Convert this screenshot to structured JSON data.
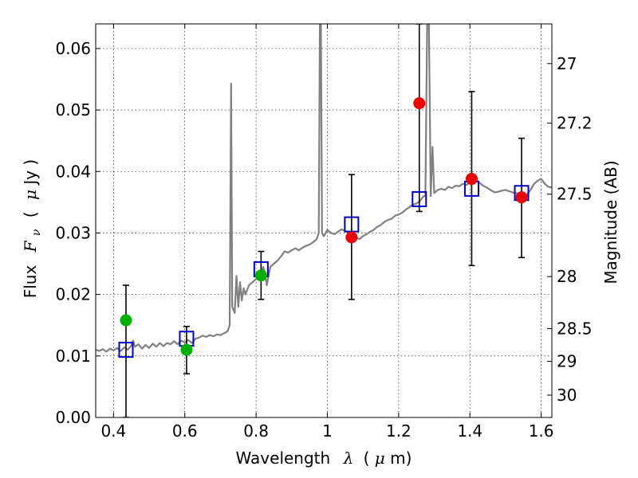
{
  "chart_data": {
    "type": "scatter",
    "xlabel_prefix": "Wavelength",
    "xlabel_symbol": "λ",
    "xlabel_unit_open": "(",
    "xlabel_unit_mu": "μ",
    "xlabel_unit_rest": "m)",
    "ylabel_prefix": "Flux",
    "ylabel_symbol": "F",
    "ylabel_subscript": "ν",
    "ylabel_unit_open": "(",
    "ylabel_unit_mu": "μ",
    "ylabel_unit_rest": "Jy )",
    "y2label": "Magnitude (AB)",
    "xlim": [
      0.35,
      1.63
    ],
    "ylim": [
      0.0,
      0.064
    ],
    "grid": true,
    "colors": {
      "spectrum": "#808080",
      "model_box": "#0000cc",
      "green": "#00b000",
      "red": "#ee0000",
      "error": "#000000"
    },
    "x_ticks": [
      {
        "value": 0.4,
        "label": "0.4"
      },
      {
        "value": 0.6,
        "label": "0.6"
      },
      {
        "value": 0.8,
        "label": "0.8"
      },
      {
        "value": 1.0,
        "label": "1"
      },
      {
        "value": 1.2,
        "label": "1.2"
      },
      {
        "value": 1.4,
        "label": "1.4"
      },
      {
        "value": 1.6,
        "label": "1.6"
      }
    ],
    "y_ticks": [
      {
        "value": 0.0,
        "label": "0.00"
      },
      {
        "value": 0.01,
        "label": "0.01"
      },
      {
        "value": 0.02,
        "label": "0.02"
      },
      {
        "value": 0.03,
        "label": "0.03"
      },
      {
        "value": 0.04,
        "label": "0.04"
      },
      {
        "value": 0.05,
        "label": "0.05"
      },
      {
        "value": 0.06,
        "label": "0.06"
      }
    ],
    "y2_ticks": [
      {
        "value": 27.0,
        "label": "27"
      },
      {
        "value": 27.2,
        "label": "27.2"
      },
      {
        "value": 27.5,
        "label": "27.5"
      },
      {
        "value": 28.0,
        "label": "28"
      },
      {
        "value": 28.5,
        "label": "28.5"
      },
      {
        "value": 29.0,
        "label": "29"
      },
      {
        "value": 30.0,
        "label": "30"
      }
    ],
    "model_photometry": [
      {
        "x": 0.435,
        "y": 0.011
      },
      {
        "x": 0.605,
        "y": 0.0128
      },
      {
        "x": 0.814,
        "y": 0.0241
      },
      {
        "x": 1.068,
        "y": 0.0314
      },
      {
        "x": 1.258,
        "y": 0.0355
      },
      {
        "x": 1.405,
        "y": 0.0372
      },
      {
        "x": 1.545,
        "y": 0.0365
      }
    ],
    "observed_green": [
      {
        "x": 0.435,
        "y": 0.0158,
        "err_low": 0.0,
        "err_high": 0.0215
      },
      {
        "x": 0.605,
        "y": 0.011,
        "err_low": 0.0071,
        "err_high": 0.0148
      },
      {
        "x": 0.814,
        "y": 0.0231,
        "err_low": 0.0192,
        "err_high": 0.027
      }
    ],
    "observed_red": [
      {
        "x": 1.068,
        "y": 0.0293,
        "err_low": 0.0192,
        "err_high": 0.0395
      },
      {
        "x": 1.258,
        "y": 0.0511,
        "err_low": 0.0335,
        "err_high": 0.064
      },
      {
        "x": 1.405,
        "y": 0.0388,
        "err_low": 0.0247,
        "err_high": 0.053
      },
      {
        "x": 1.545,
        "y": 0.0358,
        "err_low": 0.026,
        "err_high": 0.0454
      }
    ],
    "spectrum": [
      [
        0.35,
        0.011
      ],
      [
        0.36,
        0.0108
      ],
      [
        0.37,
        0.0111
      ],
      [
        0.38,
        0.0107
      ],
      [
        0.39,
        0.0112
      ],
      [
        0.4,
        0.0109
      ],
      [
        0.41,
        0.0113
      ],
      [
        0.42,
        0.0108
      ],
      [
        0.43,
        0.0114
      ],
      [
        0.44,
        0.011
      ],
      [
        0.45,
        0.0117
      ],
      [
        0.455,
        0.0125
      ],
      [
        0.46,
        0.0115
      ],
      [
        0.47,
        0.0119
      ],
      [
        0.48,
        0.0112
      ],
      [
        0.49,
        0.0118
      ],
      [
        0.5,
        0.0113
      ],
      [
        0.51,
        0.012
      ],
      [
        0.52,
        0.0115
      ],
      [
        0.53,
        0.0121
      ],
      [
        0.54,
        0.0116
      ],
      [
        0.55,
        0.0121
      ],
      [
        0.56,
        0.0119
      ],
      [
        0.57,
        0.0124
      ],
      [
        0.58,
        0.0119
      ],
      [
        0.59,
        0.0125
      ],
      [
        0.6,
        0.0122
      ],
      [
        0.61,
        0.0126
      ],
      [
        0.62,
        0.0121
      ],
      [
        0.63,
        0.0128
      ],
      [
        0.64,
        0.013
      ],
      [
        0.65,
        0.0133
      ],
      [
        0.66,
        0.0131
      ],
      [
        0.67,
        0.0134
      ],
      [
        0.68,
        0.0132
      ],
      [
        0.69,
        0.0135
      ],
      [
        0.7,
        0.0134
      ],
      [
        0.71,
        0.0137
      ],
      [
        0.72,
        0.014
      ],
      [
        0.726,
        0.015
      ],
      [
        0.73,
        0.0543
      ],
      [
        0.733,
        0.018
      ],
      [
        0.74,
        0.017
      ],
      [
        0.745,
        0.023
      ],
      [
        0.75,
        0.018
      ],
      [
        0.755,
        0.022
      ],
      [
        0.76,
        0.019
      ],
      [
        0.765,
        0.021
      ],
      [
        0.77,
        0.02
      ],
      [
        0.78,
        0.0215
      ],
      [
        0.79,
        0.022
      ],
      [
        0.8,
        0.0225
      ],
      [
        0.81,
        0.0228
      ],
      [
        0.82,
        0.0245
      ],
      [
        0.825,
        0.0235
      ],
      [
        0.83,
        0.0215
      ],
      [
        0.84,
        0.0245
      ],
      [
        0.85,
        0.025
      ],
      [
        0.86,
        0.0255
      ],
      [
        0.87,
        0.0262
      ],
      [
        0.88,
        0.027
      ],
      [
        0.89,
        0.0268
      ],
      [
        0.9,
        0.0272
      ],
      [
        0.91,
        0.0275
      ],
      [
        0.92,
        0.0272
      ],
      [
        0.93,
        0.0276
      ],
      [
        0.94,
        0.0279
      ],
      [
        0.95,
        0.0281
      ],
      [
        0.96,
        0.0285
      ],
      [
        0.97,
        0.029
      ],
      [
        0.976,
        0.03
      ],
      [
        0.979,
        0.064
      ],
      [
        0.982,
        0.064
      ],
      [
        0.985,
        0.03
      ],
      [
        0.99,
        0.0295
      ],
      [
        1.0,
        0.0305
      ],
      [
        1.01,
        0.03
      ],
      [
        1.02,
        0.0298
      ],
      [
        1.03,
        0.0302
      ],
      [
        1.04,
        0.0306
      ],
      [
        1.05,
        0.0303
      ],
      [
        1.06,
        0.03
      ],
      [
        1.07,
        0.0296
      ],
      [
        1.08,
        0.0293
      ],
      [
        1.09,
        0.029
      ],
      [
        1.1,
        0.0295
      ],
      [
        1.11,
        0.0298
      ],
      [
        1.12,
        0.0302
      ],
      [
        1.13,
        0.0305
      ],
      [
        1.14,
        0.031
      ],
      [
        1.15,
        0.0313
      ],
      [
        1.16,
        0.0318
      ],
      [
        1.17,
        0.0321
      ],
      [
        1.18,
        0.0323
      ],
      [
        1.19,
        0.0328
      ],
      [
        1.2,
        0.033
      ],
      [
        1.21,
        0.0333
      ],
      [
        1.22,
        0.0338
      ],
      [
        1.23,
        0.0342
      ],
      [
        1.24,
        0.0346
      ],
      [
        1.25,
        0.0348
      ],
      [
        1.26,
        0.0352
      ],
      [
        1.27,
        0.036
      ],
      [
        1.275,
        0.036
      ],
      [
        1.28,
        0.064
      ],
      [
        1.285,
        0.064
      ],
      [
        1.29,
        0.036
      ],
      [
        1.295,
        0.044
      ],
      [
        1.3,
        0.0365
      ],
      [
        1.31,
        0.037
      ],
      [
        1.32,
        0.0372
      ],
      [
        1.33,
        0.037
      ],
      [
        1.34,
        0.0375
      ],
      [
        1.35,
        0.0373
      ],
      [
        1.36,
        0.0377
      ],
      [
        1.37,
        0.0376
      ],
      [
        1.38,
        0.038
      ],
      [
        1.39,
        0.0378
      ],
      [
        1.4,
        0.0382
      ],
      [
        1.41,
        0.0381
      ],
      [
        1.42,
        0.0385
      ],
      [
        1.43,
        0.038
      ],
      [
        1.44,
        0.0376
      ],
      [
        1.45,
        0.0373
      ],
      [
        1.46,
        0.0369
      ],
      [
        1.47,
        0.0366
      ],
      [
        1.48,
        0.0367
      ],
      [
        1.49,
        0.0369
      ],
      [
        1.5,
        0.037
      ],
      [
        1.51,
        0.0368
      ],
      [
        1.52,
        0.0366
      ],
      [
        1.53,
        0.0365
      ],
      [
        1.54,
        0.0363
      ],
      [
        1.55,
        0.036
      ],
      [
        1.56,
        0.0362
      ],
      [
        1.57,
        0.037
      ],
      [
        1.58,
        0.038
      ],
      [
        1.59,
        0.0385
      ],
      [
        1.6,
        0.0388
      ],
      [
        1.61,
        0.038
      ],
      [
        1.62,
        0.0375
      ],
      [
        1.63,
        0.0374
      ]
    ]
  }
}
